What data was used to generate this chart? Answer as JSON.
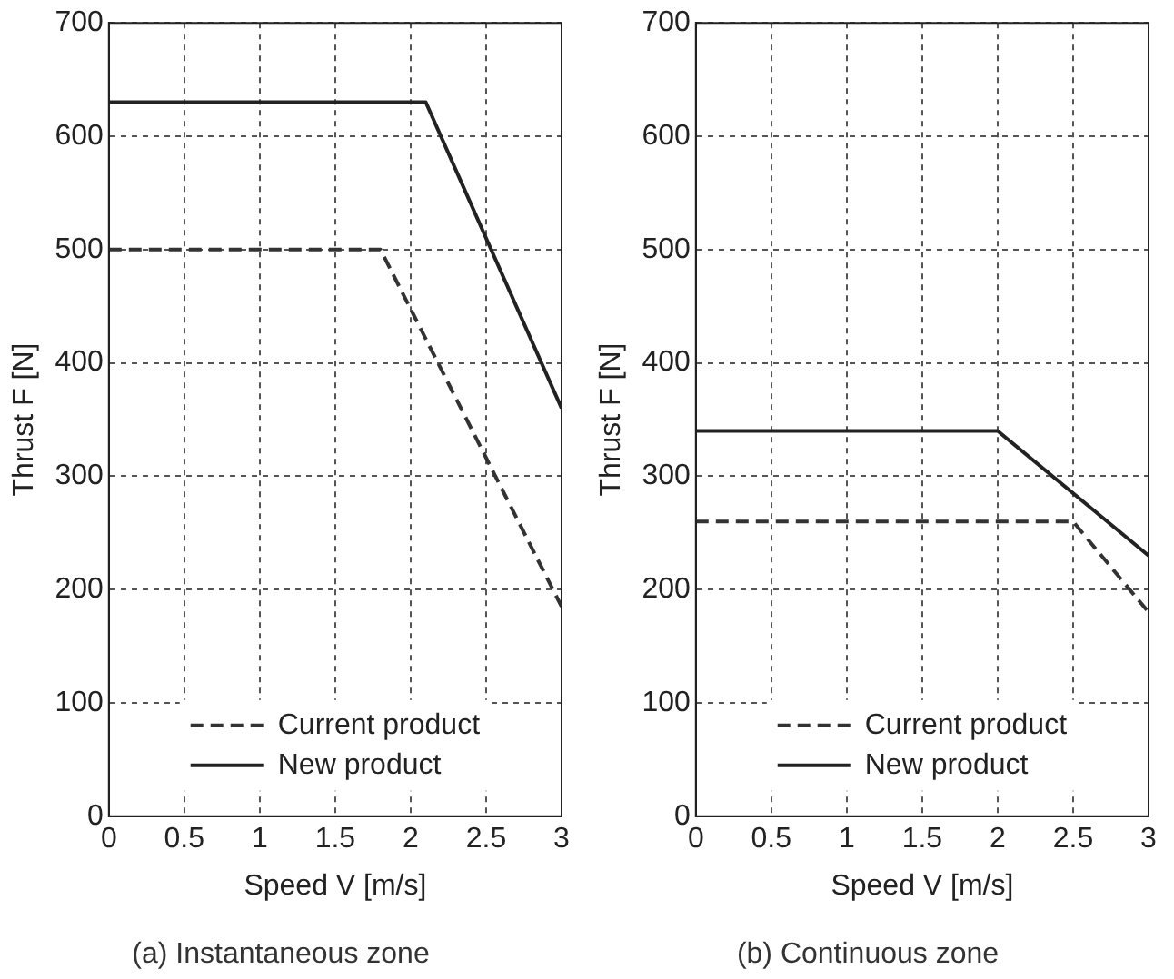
{
  "chart_data": [
    {
      "type": "line",
      "title": "(a) Instantaneous zone",
      "xlabel": "Speed V [m/s]",
      "ylabel": "Thrust F [N]",
      "xlim": [
        0,
        3
      ],
      "xticks": [
        0,
        0.5,
        1,
        1.5,
        2,
        2.5,
        3
      ],
      "ylim": [
        0,
        700
      ],
      "yticks": [
        0,
        100,
        200,
        300,
        400,
        500,
        600,
        700
      ],
      "grid": true,
      "legend": "bottom",
      "marker": "none",
      "series": [
        {
          "name": "Current product",
          "color": "#333333",
          "line_style": "dashed",
          "x": [
            0,
            1.8,
            3
          ],
          "values": [
            500,
            500,
            185
          ]
        },
        {
          "name": "New product",
          "color": "#222222",
          "line_style": "solid",
          "x": [
            0,
            2.1,
            3
          ],
          "values": [
            630,
            630,
            360
          ]
        }
      ]
    },
    {
      "type": "line",
      "title": "(b) Continuous zone",
      "xlabel": "Speed V [m/s]",
      "ylabel": "Thrust F [N]",
      "xlim": [
        0,
        3
      ],
      "xticks": [
        0,
        0.5,
        1,
        1.5,
        2,
        2.5,
        3
      ],
      "ylim": [
        0,
        700
      ],
      "yticks": [
        0,
        100,
        200,
        300,
        400,
        500,
        600,
        700
      ],
      "grid": true,
      "legend": "bottom",
      "marker": "none",
      "series": [
        {
          "name": "Current product",
          "color": "#333333",
          "line_style": "dashed",
          "x": [
            0,
            2.5,
            3
          ],
          "values": [
            260,
            260,
            180
          ]
        },
        {
          "name": "New product",
          "color": "#222222",
          "line_style": "solid",
          "x": [
            0,
            2,
            3
          ],
          "values": [
            340,
            340,
            230
          ]
        }
      ]
    }
  ]
}
